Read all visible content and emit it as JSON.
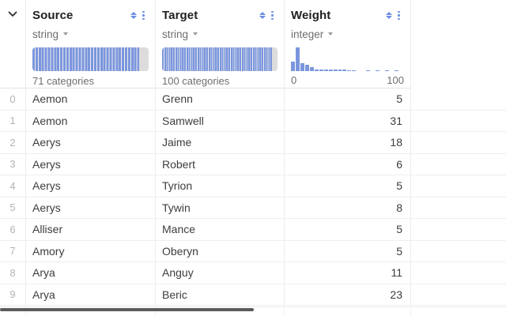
{
  "colors": {
    "accent_blue": "#7b96dd",
    "icon_blue": "#6b8de3",
    "histogram_tail_gray": "#dcdcdc",
    "scrollbar_thumb": "#5b5b5b",
    "header_text": "#212121",
    "muted_text": "#6e6e6e",
    "row_index_text": "#b4b4b4"
  },
  "header": {
    "expand_icon": "chevron-down",
    "columns": [
      {
        "name": "Source",
        "type": "string",
        "summary": "71 categories",
        "histogram": {
          "kind": "categorical",
          "fill_ratio": 0.92
        }
      },
      {
        "name": "Target",
        "type": "string",
        "summary": "100 categories",
        "histogram": {
          "kind": "categorical",
          "fill_ratio": 0.95
        }
      },
      {
        "name": "Weight",
        "type": "integer",
        "axis": {
          "min": "0",
          "max": "100"
        },
        "histogram": {
          "kind": "numeric",
          "bars": [
            0.4,
            1.0,
            0.34,
            0.28,
            0.18,
            0.08,
            0.08,
            0.07,
            0.07,
            0.06,
            0.06,
            0.06,
            0.05,
            0.05,
            0,
            0,
            0.05,
            0,
            0.05,
            0,
            0.05,
            0,
            0.05,
            0
          ]
        }
      }
    ]
  },
  "rows": [
    {
      "index": "0",
      "source": "Aemon",
      "target": "Grenn",
      "weight": "5"
    },
    {
      "index": "1",
      "source": "Aemon",
      "target": "Samwell",
      "weight": "31"
    },
    {
      "index": "2",
      "source": "Aerys",
      "target": "Jaime",
      "weight": "18"
    },
    {
      "index": "3",
      "source": "Aerys",
      "target": "Robert",
      "weight": "6"
    },
    {
      "index": "4",
      "source": "Aerys",
      "target": "Tyrion",
      "weight": "5"
    },
    {
      "index": "5",
      "source": "Aerys",
      "target": "Tywin",
      "weight": "8"
    },
    {
      "index": "6",
      "source": "Alliser",
      "target": "Mance",
      "weight": "5"
    },
    {
      "index": "7",
      "source": "Amory",
      "target": "Oberyn",
      "weight": "5"
    },
    {
      "index": "8",
      "source": "Arya",
      "target": "Anguy",
      "weight": "11"
    },
    {
      "index": "9",
      "source": "Arya",
      "target": "Beric",
      "weight": "23"
    }
  ]
}
